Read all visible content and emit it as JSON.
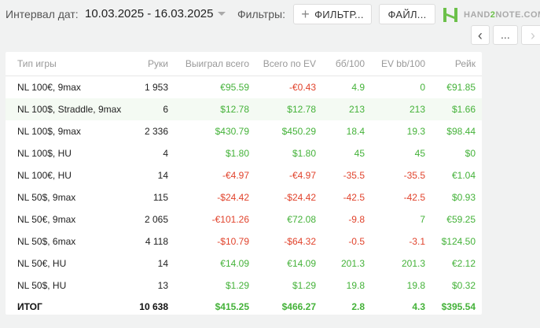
{
  "header": {
    "date_label": "Интервал дат:",
    "date_value": "10.03.2025 - 16.03.2025",
    "filters_label": "Фильтры:",
    "filter_button": "ФИЛЬТР...",
    "file_button": "ФАЙЛ...",
    "logo_part1": "HAND",
    "logo_part2": "2",
    "logo_part3": "NOTE.COM",
    "nav_more": "...",
    "brand_color": "#6cc04a"
  },
  "table": {
    "columns": [
      "Тип игры",
      "Руки",
      "Выиграл всего",
      "Всего по EV",
      "бб/100",
      "EV bb/100",
      "Рейк"
    ],
    "rows": [
      {
        "game": "NL 100€, 9max",
        "hands": "1 953",
        "won": "€95.59",
        "ev": "-€0.43",
        "bb": "4.9",
        "evbb": "0",
        "rake": "€91.85"
      },
      {
        "game": "NL 100$, Straddle, 9max",
        "hands": "6",
        "won": "$12.78",
        "ev": "$12.78",
        "bb": "213",
        "evbb": "213",
        "rake": "$1.66"
      },
      {
        "game": "NL 100$, 9max",
        "hands": "2 336",
        "won": "$430.79",
        "ev": "$450.29",
        "bb": "18.4",
        "evbb": "19.3",
        "rake": "$98.44"
      },
      {
        "game": "NL 100$, HU",
        "hands": "4",
        "won": "$1.80",
        "ev": "$1.80",
        "bb": "45",
        "evbb": "45",
        "rake": "$0"
      },
      {
        "game": "NL 100€, HU",
        "hands": "14",
        "won": "-€4.97",
        "ev": "-€4.97",
        "bb": "-35.5",
        "evbb": "-35.5",
        "rake": "€1.04"
      },
      {
        "game": "NL 50$, 9max",
        "hands": "115",
        "won": "-$24.42",
        "ev": "-$24.42",
        "bb": "-42.5",
        "evbb": "-42.5",
        "rake": "$0.93"
      },
      {
        "game": "NL 50€, 9max",
        "hands": "2 065",
        "won": "-€101.26",
        "ev": "€72.08",
        "bb": "-9.8",
        "evbb": "7",
        "rake": "€59.25"
      },
      {
        "game": "NL 50$, 6max",
        "hands": "4 118",
        "won": "-$10.79",
        "ev": "-$64.32",
        "bb": "-0.5",
        "evbb": "-3.1",
        "rake": "$124.50"
      },
      {
        "game": "NL 50€, HU",
        "hands": "14",
        "won": "€14.09",
        "ev": "€14.09",
        "bb": "201.3",
        "evbb": "201.3",
        "rake": "€2.12"
      },
      {
        "game": "NL 50$, HU",
        "hands": "13",
        "won": "$1.29",
        "ev": "$1.29",
        "bb": "19.8",
        "evbb": "19.8",
        "rake": "$0.32"
      }
    ],
    "total": {
      "game": "ИТОГ",
      "hands": "10 638",
      "won": "$415.25",
      "ev": "$466.27",
      "bb": "2.8",
      "evbb": "4.3",
      "rake": "$395.54"
    },
    "positive_color": "#44b239",
    "negative_color": "#e1432c"
  }
}
